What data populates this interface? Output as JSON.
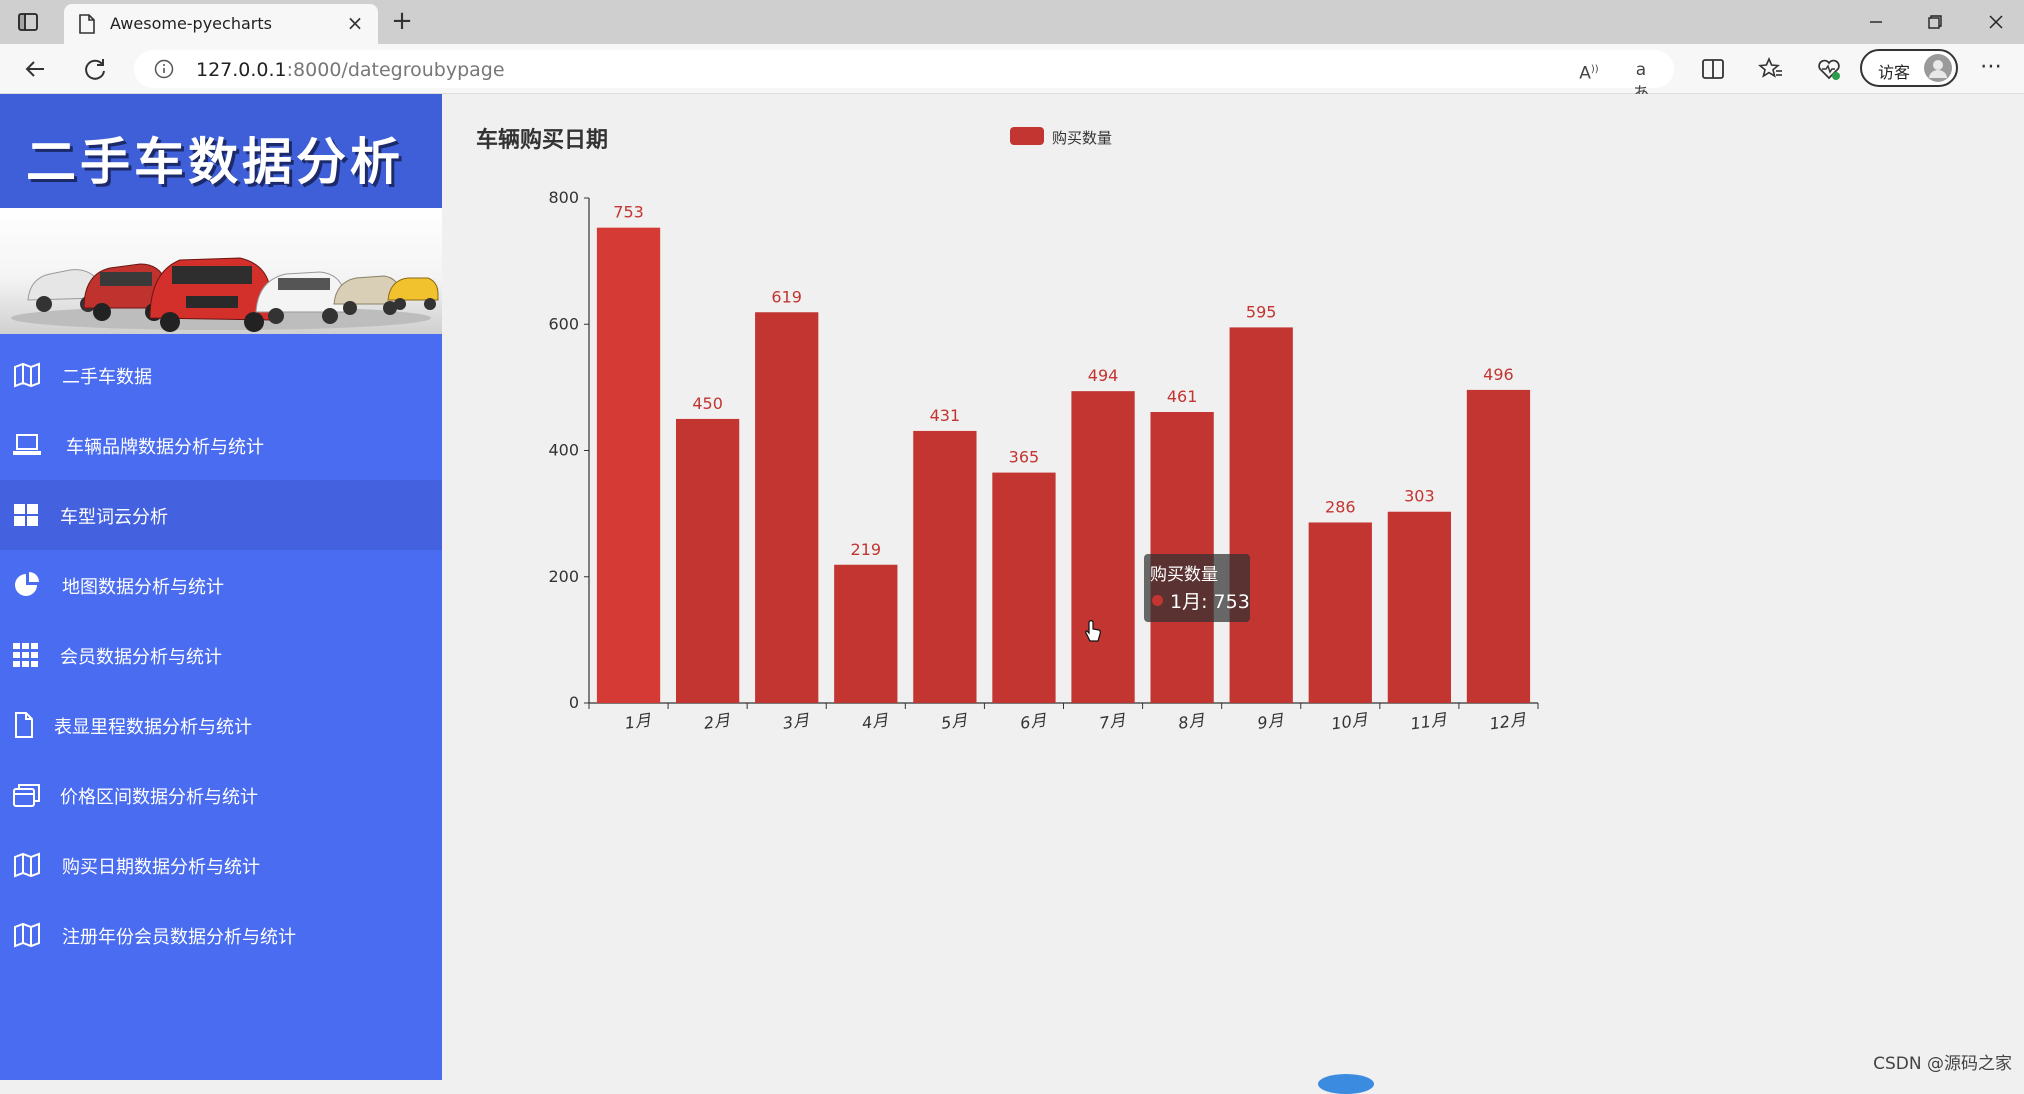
{
  "browser": {
    "tab_title": "Awesome-pyecharts",
    "url_host": "127.0.0.1",
    "url_rest": ":8000/dategroubypage",
    "profile_label": "访客"
  },
  "sidebar": {
    "title": "二手车数据分析",
    "active_index": 2,
    "items": [
      {
        "label": "二手车数据",
        "icon": "map-icon"
      },
      {
        "label": "车辆品牌数据分析与统计",
        "icon": "laptop-icon"
      },
      {
        "label": "车型词云分析",
        "icon": "windows-grid-icon"
      },
      {
        "label": "地图数据分析与统计",
        "icon": "pie-chart-icon"
      },
      {
        "label": "会员数据分析与统计",
        "icon": "grid-icon"
      },
      {
        "label": "表显里程数据分析与统计",
        "icon": "file-icon"
      },
      {
        "label": "价格区间数据分析与统计",
        "icon": "windows-icon"
      },
      {
        "label": "购买日期数据分析与统计",
        "icon": "map-icon"
      },
      {
        "label": "注册年份会员数据分析与统计",
        "icon": "map-icon"
      }
    ]
  },
  "chart_data": {
    "type": "bar",
    "title": "车辆购买日期",
    "categories": [
      "1月",
      "2月",
      "3月",
      "4月",
      "5月",
      "6月",
      "7月",
      "8月",
      "9月",
      "10月",
      "11月",
      "12月"
    ],
    "series": [
      {
        "name": "购买数量",
        "values": [
          753,
          450,
          619,
          219,
          431,
          365,
          494,
          461,
          595,
          286,
          303,
          496
        ],
        "color": "#c23531"
      }
    ],
    "yticks": [
      "0",
      "200",
      "400",
      "600",
      "800"
    ],
    "ylim": [
      0,
      800
    ],
    "legend_position": "top-center",
    "grid": false,
    "highlight_color": "#d63a35"
  },
  "tooltip": {
    "title": "购买数量",
    "value": "1月: 753"
  },
  "watermark": "CSDN @源码之家"
}
